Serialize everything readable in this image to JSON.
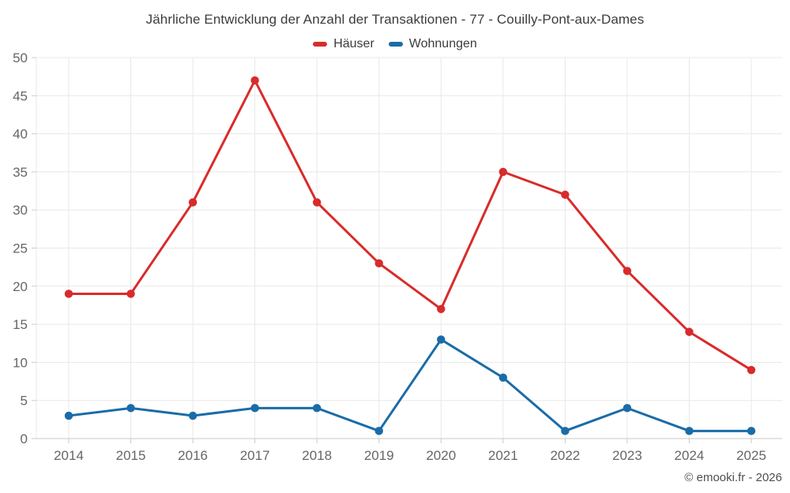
{
  "footer": {
    "credit": "© emooki.fr - 2026"
  },
  "chart_data": {
    "type": "line",
    "title": "Jährliche Entwicklung der Anzahl der Transaktionen - 77 - Couilly-Pont-aux-Dames",
    "categories": [
      "2014",
      "2015",
      "2016",
      "2017",
      "2018",
      "2019",
      "2020",
      "2021",
      "2022",
      "2023",
      "2024",
      "2025"
    ],
    "series": [
      {
        "name": "Häuser",
        "color": "#d92b2b",
        "values": [
          19,
          19,
          31,
          47,
          31,
          23,
          17,
          35,
          32,
          22,
          14,
          9
        ]
      },
      {
        "name": "Wohnungen",
        "color": "#1a6ca8",
        "values": [
          3,
          4,
          3,
          4,
          4,
          1,
          13,
          8,
          1,
          4,
          1,
          1
        ]
      }
    ],
    "xlabel": "",
    "ylabel": "",
    "ylim": [
      0,
      50
    ],
    "yticks": [
      0,
      5,
      10,
      15,
      20,
      25,
      30,
      35,
      40,
      45,
      50
    ],
    "grid": true,
    "legend_position": "top",
    "colors": {
      "grid": "#e8e8e8",
      "axis": "#c9c9c9",
      "tick": "#cccccc",
      "label": "#666666"
    }
  }
}
